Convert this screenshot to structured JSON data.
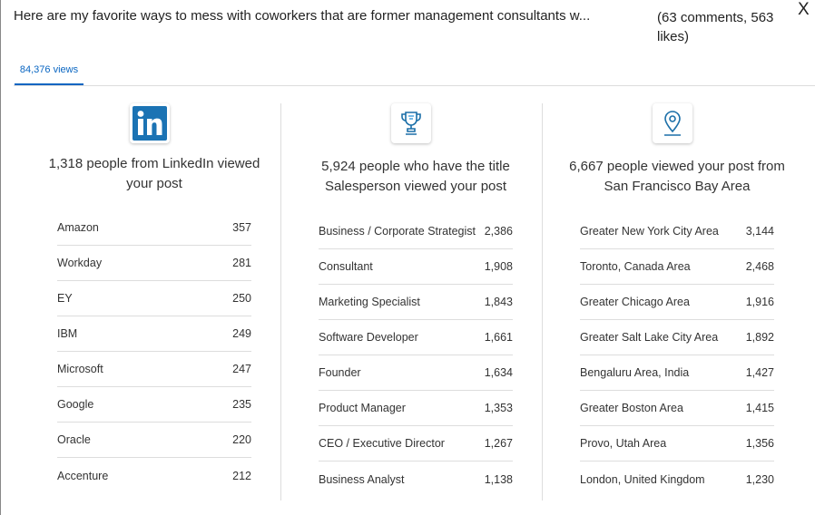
{
  "header": {
    "title": "Here are my favorite ways to mess with coworkers that are former management consultants w...",
    "meta": "(63 comments, 563 likes)",
    "close_label": "X"
  },
  "tabs": [
    {
      "label": "84,376 views",
      "active": true
    }
  ],
  "accent": "#0a66c2",
  "columns": [
    {
      "icon": "linkedin-icon",
      "heading": "1,318 people from LinkedIn viewed your post",
      "rows": [
        [
          "Amazon",
          "357"
        ],
        [
          "Workday",
          "281"
        ],
        [
          "EY",
          "250"
        ],
        [
          "IBM",
          "249"
        ],
        [
          "Microsoft",
          "247"
        ],
        [
          "Google",
          "235"
        ],
        [
          "Oracle",
          "220"
        ],
        [
          "Accenture",
          "212"
        ]
      ]
    },
    {
      "icon": "trophy-icon",
      "heading": "5,924 people who have the title Salesperson viewed your post",
      "rows": [
        [
          "Business / Corporate Strategist",
          "2,386"
        ],
        [
          "Consultant",
          "1,908"
        ],
        [
          "Marketing Specialist",
          "1,843"
        ],
        [
          "Software Developer",
          "1,661"
        ],
        [
          "Founder",
          "1,634"
        ],
        [
          "Product Manager",
          "1,353"
        ],
        [
          "CEO / Executive Director",
          "1,267"
        ],
        [
          "Business Analyst",
          "1,138"
        ]
      ]
    },
    {
      "icon": "location-pin-icon",
      "heading": "6,667 people viewed your post from San Francisco Bay Area",
      "rows": [
        [
          "Greater New York City Area",
          "3,144"
        ],
        [
          "Toronto, Canada Area",
          "2,468"
        ],
        [
          "Greater Chicago Area",
          "1,916"
        ],
        [
          "Greater Salt Lake City Area",
          "1,892"
        ],
        [
          "Bengaluru Area, India",
          "1,427"
        ],
        [
          "Greater Boston Area",
          "1,415"
        ],
        [
          "Provo, Utah Area",
          "1,356"
        ],
        [
          "London, United Kingdom",
          "1,230"
        ]
      ]
    }
  ]
}
